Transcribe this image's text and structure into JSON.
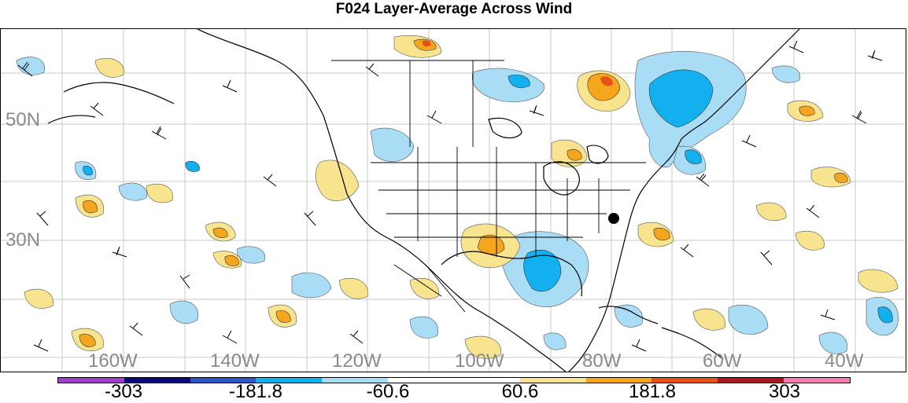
{
  "title": "F024 Layer-Average Across Wind",
  "lat_labels": [
    "50N",
    "30N"
  ],
  "lon_labels": [
    "160W",
    "140W",
    "120W",
    "100W",
    "80W",
    "60W",
    "40W"
  ],
  "colorbar": {
    "colors": [
      "#9f3fc9",
      "#0a0a7a",
      "#2f55c8",
      "#12b0ee",
      "#a9ddf6",
      "#ffffff",
      "#ffffff",
      "#f8e48e",
      "#f5a61c",
      "#e8501b",
      "#a8191d",
      "#f37db0"
    ],
    "labels": [
      "-303",
      "-181.8",
      "-60.6",
      "60.6",
      "181.8",
      "303"
    ]
  },
  "legend": {
    "colors": {
      "light_blue": "#a9ddf6",
      "blue": "#12b0ee",
      "light_yellow": "#f8e48e",
      "orange": "#f5a61c",
      "red_orange": "#e8501b"
    }
  },
  "marker": "station-dot"
}
